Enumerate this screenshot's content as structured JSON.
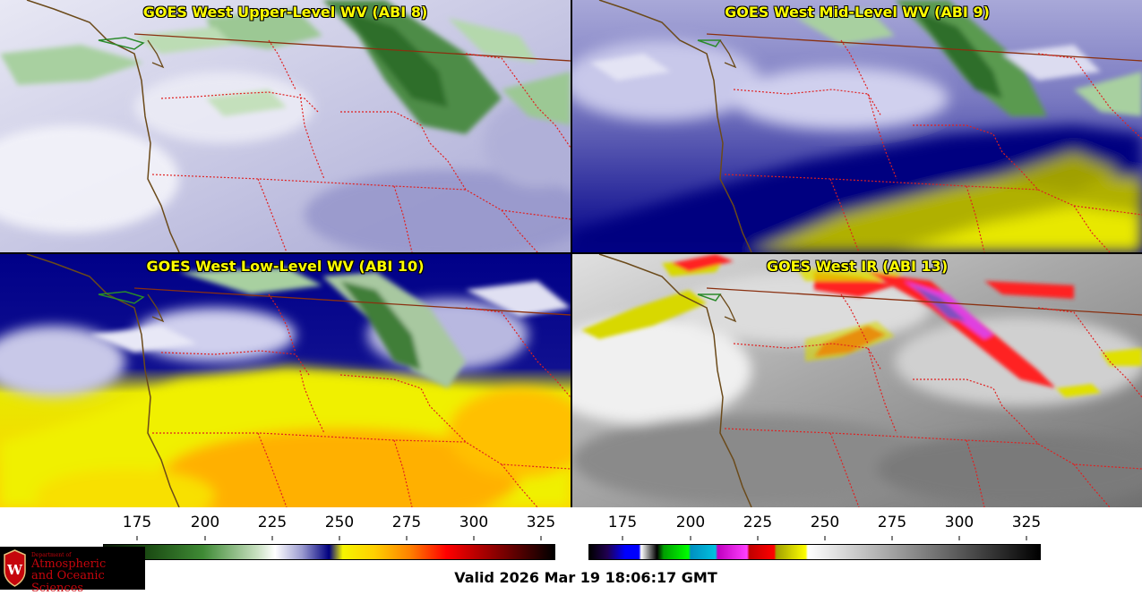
{
  "panels": {
    "upper": {
      "title": "GOES West Upper-Level WV (ABI 8)"
    },
    "mid": {
      "title": "GOES West Mid-Level WV (ABI 9)"
    },
    "low": {
      "title": "GOES West Low-Level WV (ABI 10)"
    },
    "ir": {
      "title": "GOES West IR (ABI 13)"
    }
  },
  "colorbars": {
    "wv": {
      "ticks": [
        "175",
        "200",
        "225",
        "250",
        "275",
        "300",
        "325"
      ]
    },
    "ir": {
      "ticks": [
        "175",
        "200",
        "225",
        "250",
        "275",
        "300",
        "325"
      ]
    }
  },
  "logo": {
    "line1": "Department of",
    "line2": "Atmospheric",
    "line3": "and Oceanic Sciences",
    "emblem": "W"
  },
  "valid_time": "Valid 2026 Mar 19 18:06:17 GMT",
  "colors": {
    "title_text": "#ffff00",
    "state_borders": "#e02020",
    "coastline": "#6b4a1a",
    "logo_red": "#c5050c"
  },
  "icons": {
    "logo": "uw-crest-icon"
  }
}
